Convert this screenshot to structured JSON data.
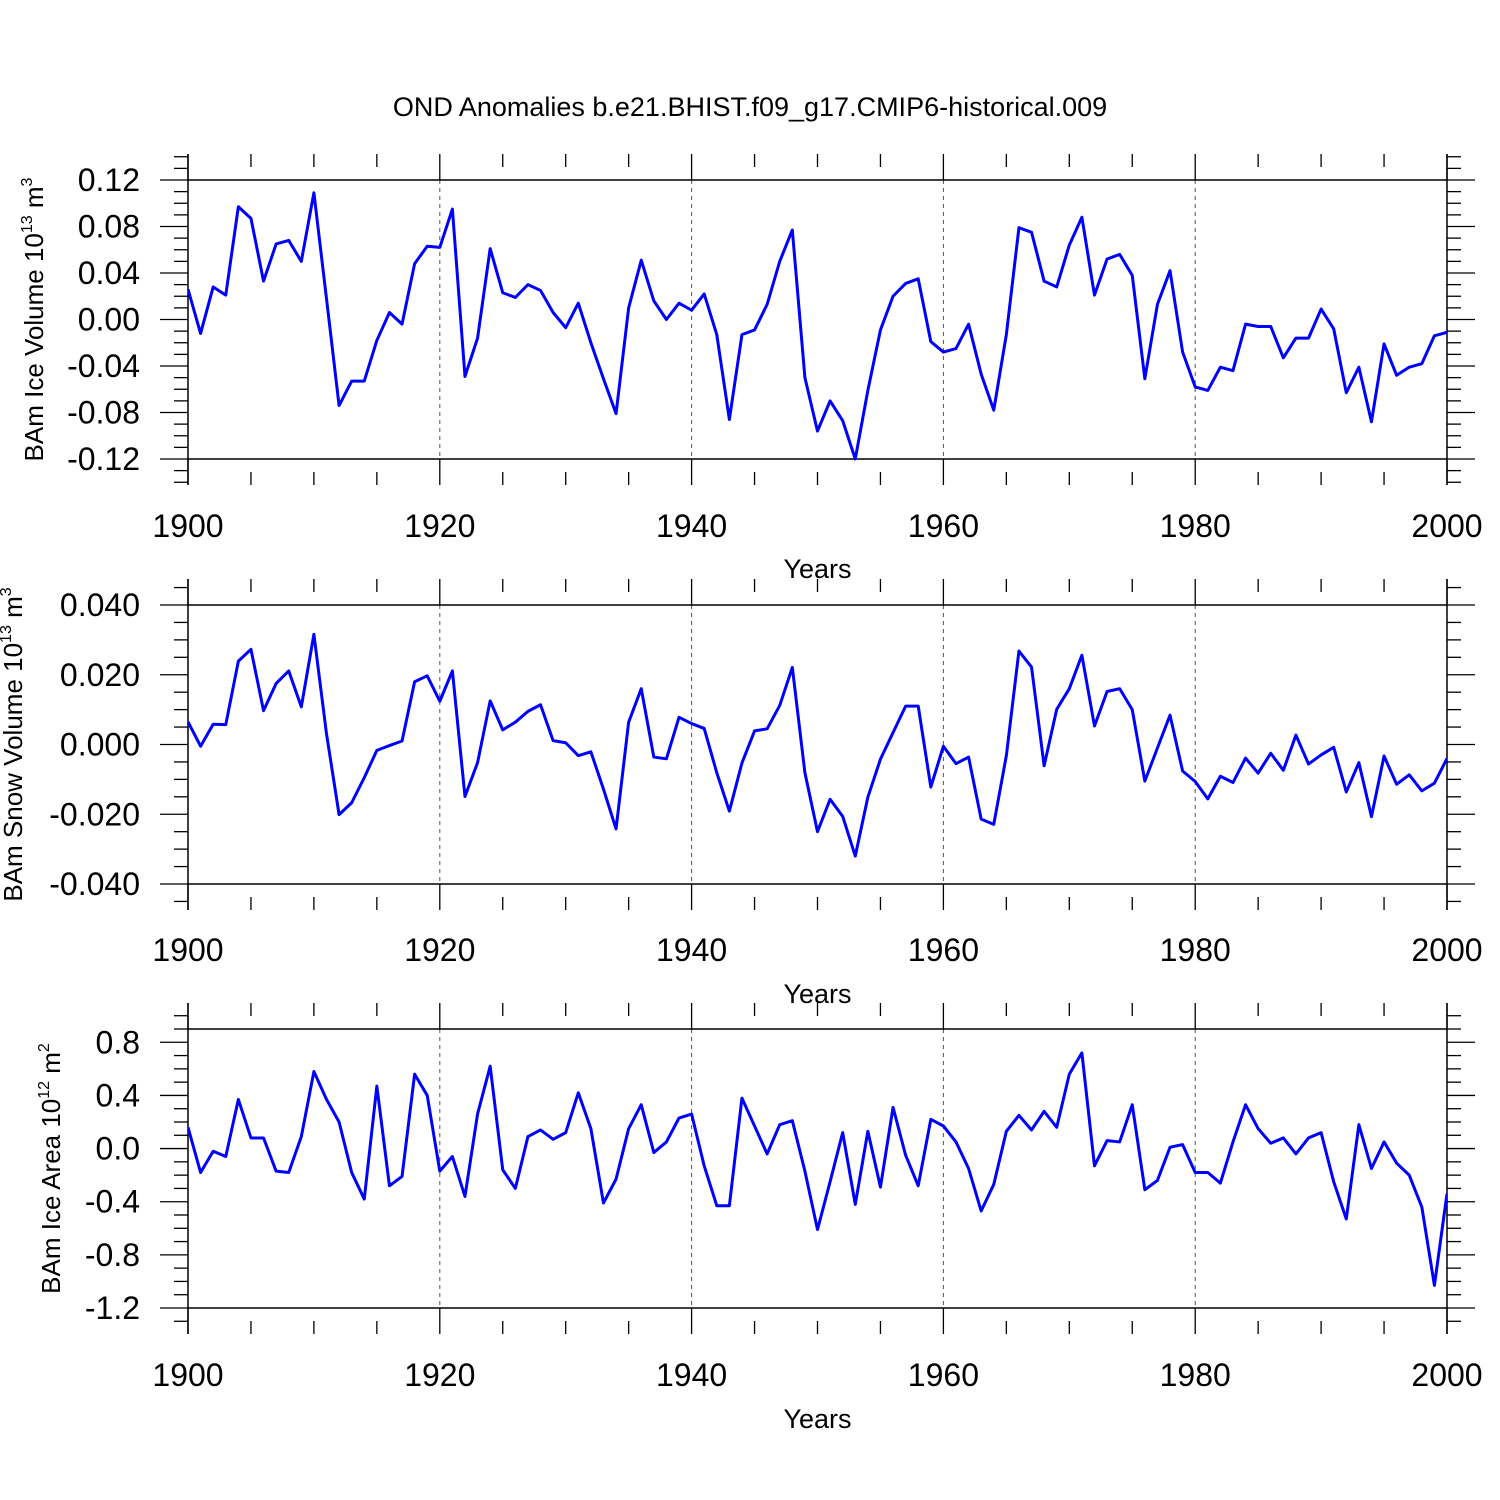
{
  "title": "OND Anomalies b.e21.BHIST.f09_g17.CMIP6-historical.009",
  "colors": {
    "series": "#0000ff",
    "axes": "#000000",
    "grid": "#555555"
  },
  "chart_data": [
    {
      "type": "line",
      "title": "OND Anomalies b.e21.BHIST.f09_g17.CMIP6-historical.009",
      "xlabel": "Years",
      "ylabel": {
        "prefix": "BAm Ice Volume 10",
        "exponent": "13",
        "mid": " m",
        "unit_exponent": "3"
      },
      "xlim": [
        1900,
        2000
      ],
      "ylim": [
        -0.12,
        0.12
      ],
      "xticks": [
        "1900",
        "1920",
        "1940",
        "1960",
        "1980",
        "2000"
      ],
      "yticks": [
        "0.12",
        "0.08",
        "0.04",
        "0.00",
        "-0.04",
        "-0.08",
        "-0.12"
      ],
      "grid": "dashed vertical at major x ticks",
      "x_start": 1900,
      "values": [
        0.026,
        -0.012,
        0.028,
        0.021,
        0.097,
        0.087,
        0.033,
        0.065,
        0.068,
        0.05,
        0.109,
        0.018,
        -0.074,
        -0.053,
        -0.053,
        -0.018,
        0.006,
        -0.004,
        0.048,
        0.063,
        0.062,
        0.095,
        -0.049,
        -0.016,
        0.061,
        0.023,
        0.019,
        0.03,
        0.025,
        0.006,
        -0.007,
        0.014,
        -0.02,
        -0.051,
        -0.081,
        0.01,
        0.051,
        0.016,
        0.0,
        0.014,
        0.008,
        0.022,
        -0.013,
        -0.086,
        -0.013,
        -0.009,
        0.013,
        0.05,
        0.077,
        -0.05,
        -0.096,
        -0.07,
        -0.087,
        -0.12,
        -0.061,
        -0.009,
        0.02,
        0.031,
        0.035,
        -0.019,
        -0.028,
        -0.025,
        -0.004,
        -0.047,
        -0.078,
        -0.013,
        0.079,
        0.075,
        0.033,
        0.028,
        0.064,
        0.088,
        0.021,
        0.052,
        0.056,
        0.038,
        -0.051,
        0.013,
        0.042,
        -0.028,
        -0.058,
        -0.061,
        -0.041,
        -0.044,
        -0.004,
        -0.006,
        -0.006,
        -0.033,
        -0.016,
        -0.016,
        0.009,
        -0.008,
        -0.063,
        -0.041,
        -0.088,
        -0.021,
        -0.048,
        -0.041,
        -0.038,
        -0.014,
        -0.011
      ]
    },
    {
      "type": "line",
      "xlabel": "Years",
      "ylabel": {
        "prefix": "BAm Snow Volume 10",
        "exponent": "13",
        "mid": " m",
        "unit_exponent": "3"
      },
      "xlim": [
        1900,
        2000
      ],
      "ylim": [
        -0.04,
        0.04
      ],
      "xticks": [
        "1900",
        "1920",
        "1940",
        "1960",
        "1980",
        "2000"
      ],
      "yticks": [
        "0.040",
        "0.020",
        "0.000",
        "-0.020",
        "-0.040"
      ],
      "grid": "dashed vertical at major x ticks",
      "x_start": 1900,
      "values": [
        0.0065,
        -0.0005,
        0.0058,
        0.0057,
        0.0239,
        0.0273,
        0.0097,
        0.0175,
        0.0211,
        0.0108,
        0.0316,
        0.0031,
        -0.0201,
        -0.0167,
        -0.0095,
        -0.0017,
        -0.0003,
        0.001,
        0.018,
        0.0197,
        0.0124,
        0.0211,
        -0.0149,
        -0.0052,
        0.0125,
        0.0042,
        0.0064,
        0.0095,
        0.0114,
        0.0011,
        0.0005,
        -0.0032,
        -0.0021,
        -0.0128,
        -0.0242,
        0.0064,
        0.016,
        -0.0036,
        -0.0041,
        0.0078,
        0.006,
        0.0046,
        -0.0081,
        -0.0191,
        -0.0053,
        0.0039,
        0.0045,
        0.0112,
        0.0221,
        -0.0081,
        -0.025,
        -0.0157,
        -0.0206,
        -0.032,
        -0.0151,
        -0.0042,
        0.0034,
        0.011,
        0.011,
        -0.0122,
        -0.0005,
        -0.0055,
        -0.0036,
        -0.0214,
        -0.0229,
        -0.0032,
        0.0268,
        0.0222,
        -0.0061,
        0.0101,
        0.016,
        0.0256,
        0.0053,
        0.0152,
        0.016,
        0.01,
        -0.0105,
        -0.001,
        0.0084,
        -0.0076,
        -0.0106,
        -0.0156,
        -0.0091,
        -0.0109,
        -0.0039,
        -0.0082,
        -0.0025,
        -0.0074,
        0.0027,
        -0.0056,
        -0.003,
        -0.0008,
        -0.0136,
        -0.0052,
        -0.0207,
        -0.0033,
        -0.0114,
        -0.0087,
        -0.0133,
        -0.0111,
        -0.004
      ]
    },
    {
      "type": "line",
      "xlabel": "Years",
      "ylabel": {
        "prefix": "BAm Ice Area 10",
        "exponent": "12",
        "mid": " m",
        "unit_exponent": "2"
      },
      "xlim": [
        1900,
        2000
      ],
      "ylim": [
        -1.2,
        0.9
      ],
      "xticks": [
        "1900",
        "1920",
        "1940",
        "1960",
        "1980",
        "2000"
      ],
      "yticks": [
        "0.8",
        "0.4",
        "0.0",
        "-0.4",
        "-0.8",
        "-1.2"
      ],
      "grid": "dashed vertical at major x ticks",
      "x_start": 1900,
      "values": [
        0.16,
        -0.18,
        -0.02,
        -0.06,
        0.37,
        0.08,
        0.08,
        -0.17,
        -0.18,
        0.09,
        0.58,
        0.37,
        0.2,
        -0.18,
        -0.38,
        0.47,
        -0.28,
        -0.21,
        0.56,
        0.4,
        -0.17,
        -0.06,
        -0.36,
        0.26,
        0.62,
        -0.16,
        -0.3,
        0.09,
        0.14,
        0.07,
        0.12,
        0.42,
        0.15,
        -0.41,
        -0.23,
        0.15,
        0.33,
        -0.03,
        0.05,
        0.23,
        0.26,
        -0.13,
        -0.43,
        -0.43,
        0.38,
        0.17,
        -0.04,
        0.18,
        0.21,
        -0.17,
        -0.61,
        -0.25,
        0.12,
        -0.42,
        0.13,
        -0.29,
        0.31,
        -0.05,
        -0.28,
        0.22,
        0.17,
        0.05,
        -0.15,
        -0.47,
        -0.27,
        0.13,
        0.25,
        0.14,
        0.28,
        0.16,
        0.56,
        0.72,
        -0.13,
        0.06,
        0.05,
        0.33,
        -0.31,
        -0.24,
        0.01,
        0.03,
        -0.18,
        -0.18,
        -0.26,
        0.05,
        0.33,
        0.15,
        0.04,
        0.08,
        -0.04,
        0.08,
        0.12,
        -0.25,
        -0.53,
        0.18,
        -0.15,
        0.05,
        -0.11,
        -0.2,
        -0.44,
        -1.03,
        -0.34
      ]
    }
  ]
}
